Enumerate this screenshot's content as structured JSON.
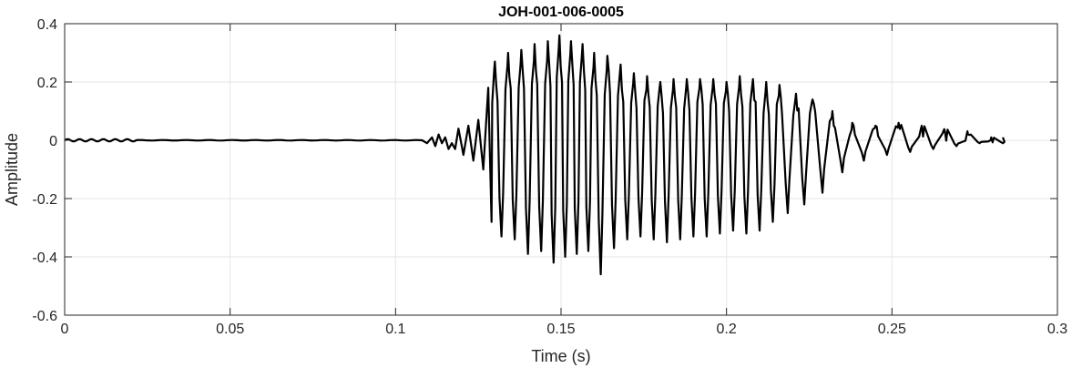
{
  "chart_data": {
    "type": "line",
    "title": "JOH-001-006-0005",
    "xlabel": "Time (s)",
    "ylabel": "Amplitude",
    "xlim": [
      0,
      0.3
    ],
    "ylim": [
      -0.6,
      0.4
    ],
    "xticks": [
      0,
      0.05,
      0.1,
      0.15,
      0.2,
      0.25,
      0.3
    ],
    "xtick_labels": [
      "0",
      "0.05",
      "0.1",
      "0.15",
      "0.2",
      "0.25",
      "0.3"
    ],
    "yticks": [
      -0.6,
      -0.4,
      -0.2,
      0,
      0.2,
      0.4
    ],
    "ytick_labels": [
      "-0.6",
      "-0.4",
      "-0.2",
      "0",
      "0.2",
      "0.4"
    ],
    "grid": true,
    "line_color": "#000000",
    "series": [
      {
        "x_start": 0,
        "x_end": 0.2835,
        "description_of_envelope": "near-zero until ~0.108 s, then oscillation with peak amplitude ~0.36 around 0.15 s, decaying to ~0.02 by 0.28 s",
        "peaks": [
          {
            "x": 0.13,
            "top": 0.27,
            "bottom": -0.33
          },
          {
            "x": 0.134,
            "top": 0.3,
            "bottom": -0.34
          },
          {
            "x": 0.138,
            "top": 0.31,
            "bottom": -0.39
          },
          {
            "x": 0.142,
            "top": 0.33,
            "bottom": -0.38
          },
          {
            "x": 0.146,
            "top": 0.34,
            "bottom": -0.42
          },
          {
            "x": 0.1495,
            "top": 0.36,
            "bottom": -0.4
          },
          {
            "x": 0.153,
            "top": 0.34,
            "bottom": -0.39
          },
          {
            "x": 0.1565,
            "top": 0.33,
            "bottom": -0.38
          },
          {
            "x": 0.16,
            "top": 0.3,
            "bottom": -0.46
          },
          {
            "x": 0.164,
            "top": 0.29,
            "bottom": -0.37
          },
          {
            "x": 0.168,
            "top": 0.26,
            "bottom": -0.34
          },
          {
            "x": 0.172,
            "top": 0.23,
            "bottom": -0.33
          },
          {
            "x": 0.176,
            "top": 0.22,
            "bottom": -0.34
          },
          {
            "x": 0.18,
            "top": 0.2,
            "bottom": -0.35
          },
          {
            "x": 0.184,
            "top": 0.21,
            "bottom": -0.34
          },
          {
            "x": 0.188,
            "top": 0.21,
            "bottom": -0.33
          },
          {
            "x": 0.192,
            "top": 0.21,
            "bottom": -0.33
          },
          {
            "x": 0.196,
            "top": 0.21,
            "bottom": -0.32
          },
          {
            "x": 0.2,
            "top": 0.2,
            "bottom": -0.31
          },
          {
            "x": 0.204,
            "top": 0.22,
            "bottom": -0.32
          },
          {
            "x": 0.208,
            "top": 0.21,
            "bottom": -0.31
          },
          {
            "x": 0.212,
            "top": 0.2,
            "bottom": -0.28
          },
          {
            "x": 0.216,
            "top": 0.19,
            "bottom": -0.25
          },
          {
            "x": 0.221,
            "top": 0.16,
            "bottom": -0.22
          },
          {
            "x": 0.226,
            "top": 0.14,
            "bottom": -0.18
          },
          {
            "x": 0.232,
            "top": 0.1,
            "bottom": -0.11
          },
          {
            "x": 0.238,
            "top": 0.06,
            "bottom": -0.07
          },
          {
            "x": 0.245,
            "top": 0.05,
            "bottom": -0.05
          },
          {
            "x": 0.252,
            "top": 0.06,
            "bottom": -0.04
          },
          {
            "x": 0.259,
            "top": 0.05,
            "bottom": -0.03
          },
          {
            "x": 0.266,
            "top": 0.03,
            "bottom": -0.02
          },
          {
            "x": 0.273,
            "top": 0.02,
            "bottom": -0.01
          },
          {
            "x": 0.28,
            "top": 0.01,
            "bottom": -0.01
          }
        ]
      }
    ]
  }
}
